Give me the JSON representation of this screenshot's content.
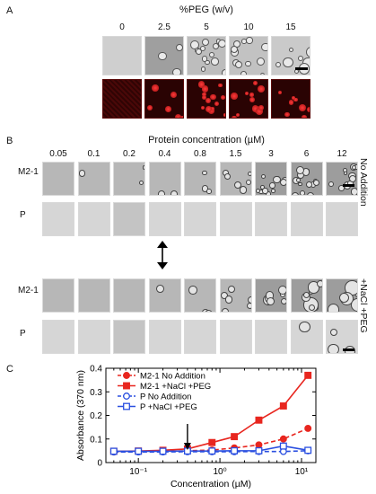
{
  "panel_a": {
    "letter": "A",
    "title": "%PEG (w/v)",
    "columns": [
      "0",
      "2.5",
      "5",
      "10",
      "15"
    ]
  },
  "panel_b": {
    "letter": "B",
    "title": "Protein concentration (µM)",
    "columns": [
      "0.05",
      "0.1",
      "0.2",
      "0.4",
      "0.8",
      "1.5",
      "3",
      "6",
      "12"
    ],
    "row_labels": {
      "m21": "M2-1",
      "p": "P"
    },
    "condition_top": "No Addition",
    "condition_bottom": "+NaCl +PEG"
  },
  "panel_c": {
    "letter": "C"
  },
  "chart_data": {
    "type": "line",
    "ylabel": "Absorbance (370 nm)",
    "xlabel": "Concentration (µM)",
    "xscale": "log",
    "xlim": [
      0.04,
      15
    ],
    "ylim": [
      0,
      0.4
    ],
    "yticks": [
      "0",
      "0.1",
      "0.2",
      "0.3",
      "0.4"
    ],
    "xticks": [
      "10⁻¹",
      "10⁰",
      "10¹"
    ],
    "x": [
      0.05,
      0.1,
      0.2,
      0.4,
      0.8,
      1.5,
      3,
      6,
      12
    ],
    "series": [
      {
        "name": "M2-1 No Addition",
        "color": "#e8261f",
        "marker": "filled-circle",
        "dash": true,
        "values": [
          0.045,
          0.046,
          0.047,
          0.05,
          0.053,
          0.062,
          0.075,
          0.1,
          0.145
        ]
      },
      {
        "name": "M2-1 +NaCl +PEG",
        "color": "#e8261f",
        "marker": "filled-square",
        "dash": false,
        "values": [
          0.048,
          0.049,
          0.052,
          0.058,
          0.085,
          0.11,
          0.18,
          0.24,
          0.37
        ]
      },
      {
        "name": "P No Addition",
        "color": "#2a4fe0",
        "marker": "open-circle",
        "dash": true,
        "values": [
          0.045,
          0.045,
          0.045,
          0.046,
          0.046,
          0.046,
          0.047,
          0.047,
          0.05
        ]
      },
      {
        "name": "P +NaCl +PEG",
        "color": "#2a4fe0",
        "marker": "open-square",
        "dash": false,
        "values": [
          0.048,
          0.048,
          0.048,
          0.049,
          0.049,
          0.05,
          0.05,
          0.07,
          0.052
        ]
      }
    ],
    "annotation": {
      "type": "arrow",
      "x": 0.4
    }
  }
}
